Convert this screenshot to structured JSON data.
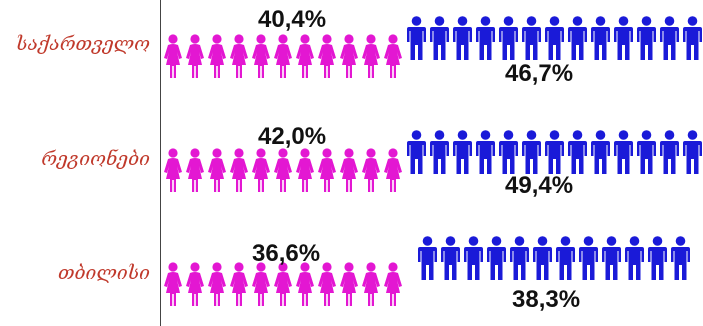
{
  "chart_data": {
    "type": "bar",
    "categories": [
      "საქართველო",
      "რეგიონები",
      "თბილისი"
    ],
    "series": [
      {
        "values": [
          40.4,
          42.0,
          36.6
        ],
        "labels": [
          "40,4%",
          "42,0%",
          "36,6%"
        ],
        "color": "#e317d2"
      },
      {
        "values": [
          46.7,
          49.4,
          38.3
        ],
        "labels": [
          "46,7%",
          "49,4%",
          "38,3%"
        ],
        "color": "#1a1ad8"
      }
    ],
    "label_color": "#c0392b"
  }
}
